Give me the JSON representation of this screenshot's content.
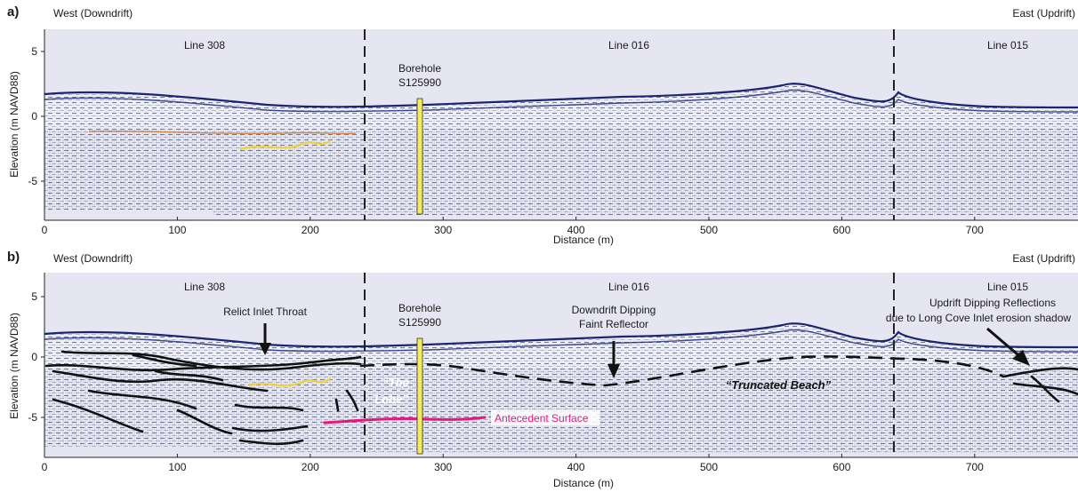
{
  "figure": {
    "panels": [
      {
        "id": "a",
        "label": "a)",
        "west_label": "West (Downdrift)",
        "east_label": "East (Updrift)",
        "lines": [
          {
            "name": "Line 308",
            "x_from": 0,
            "x_to": 237
          },
          {
            "name": "Line 016",
            "x_from": 237,
            "x_to": 635
          },
          {
            "name": "Line 015",
            "x_from": 635,
            "x_to": 780
          }
        ],
        "borehole": {
          "line1": "Borehole",
          "line2": "S125990",
          "x": 282
        },
        "annotations": []
      },
      {
        "id": "b",
        "label": "b)",
        "west_label": "West (Downdrift)",
        "east_label": "East (Updrift)",
        "lines": [
          {
            "name": "Line 308",
            "x_from": 0,
            "x_to": 237
          },
          {
            "name": "Line 016",
            "x_from": 237,
            "x_to": 635
          },
          {
            "name": "Line 015",
            "x_from": 635,
            "x_to": 780
          }
        ],
        "borehole": {
          "line1": "Borehole",
          "line2": "S125990",
          "x": 282
        },
        "annotations": {
          "relict_inlet_throat": "Relict Inlet Throat",
          "downdrift_line1": "Downdrift Dipping",
          "downdrift_line2": "Faint Reflector",
          "updrift_line1": "Updrift Dipping Reflections",
          "updrift_line2": "due to Long Cove Inlet erosion shadow",
          "the_lobe_line1": "“The",
          "the_lobe_line2": "Lobe”",
          "truncated_beach": "“Truncated Beach”",
          "antecedent_surface": "Antecedent Surface"
        }
      }
    ],
    "x_axis_label": "Distance (m)",
    "y_axis_label": "Elevation (m NAVD88)",
    "x_ticks": [
      0,
      100,
      200,
      300,
      400,
      500,
      600,
      700
    ],
    "y_ticks": [
      5,
      0,
      -5
    ],
    "x_range": [
      0,
      780
    ],
    "y_range": [
      -7.5,
      6.5
    ],
    "colors": {
      "sky": "#e6e6f2",
      "radar_bg": "#edeefa",
      "radar_blue": "#2e3a8c",
      "radar_gray": "#7d7d86",
      "borehole": "#f4ec5a",
      "antecedent": "#e6177d",
      "interpretation": "#111111"
    }
  }
}
